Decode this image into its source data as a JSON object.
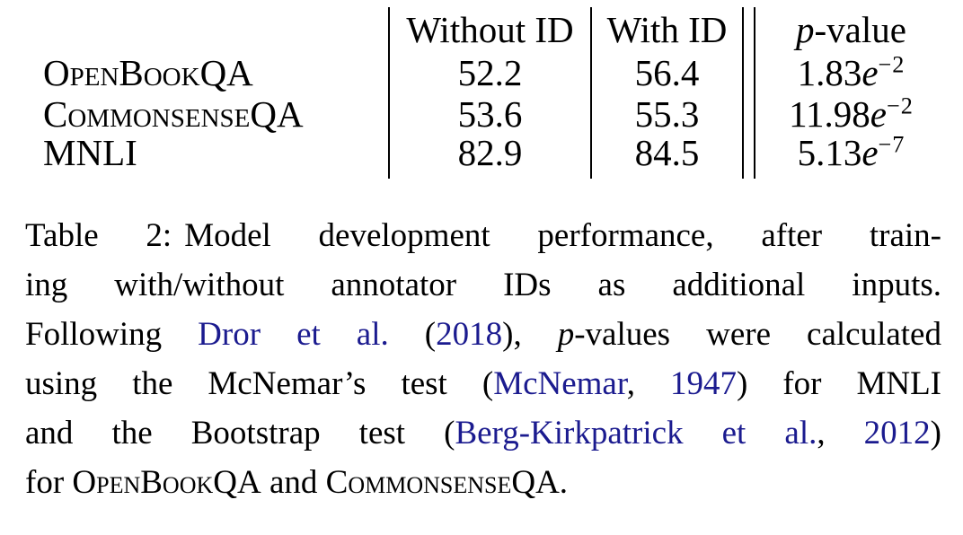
{
  "colors": {
    "background": "#ffffff",
    "text": "#000000",
    "citation_link": "#1B1B8F"
  },
  "table": {
    "columns": {
      "row_header": "",
      "without_id": "Without ID",
      "with_id": "With ID",
      "p_header_italic": "p",
      "p_header_rest": "-value"
    },
    "rows": [
      {
        "label": "OpenBookQA",
        "without_id": "52.2",
        "with_id": "56.4",
        "p_mantissa": "1.83",
        "p_e": "e",
        "p_exponent": "−2"
      },
      {
        "label": "CommonsenseQA",
        "without_id": "53.6",
        "with_id": "55.3",
        "p_mantissa": "11.98",
        "p_e": "e",
        "p_exponent": "−2"
      },
      {
        "label": "MNLI",
        "without_id": "82.9",
        "with_id": "84.5",
        "p_mantissa": "5.13",
        "p_e": "e",
        "p_exponent": "−7"
      }
    ]
  },
  "caption": {
    "lines": [
      [
        {
          "k": "label",
          "t": "Table 2:"
        },
        {
          "k": "text",
          "t": "Model development performance, after train-"
        }
      ],
      [
        {
          "k": "text",
          "t": "ing with/without annotator IDs as additional inputs."
        }
      ],
      [
        {
          "k": "text",
          "t": "Following "
        },
        {
          "k": "cite",
          "t": "Dror et al."
        },
        {
          "k": "text",
          "t": " ("
        },
        {
          "k": "cite",
          "t": "2018"
        },
        {
          "k": "text",
          "t": "), "
        },
        {
          "k": "italic",
          "t": "p"
        },
        {
          "k": "text",
          "t": "-values were calculated"
        }
      ],
      [
        {
          "k": "text",
          "t": "using the McNemar’s test ("
        },
        {
          "k": "cite",
          "t": "McNemar"
        },
        {
          "k": "text",
          "t": ", "
        },
        {
          "k": "cite",
          "t": "1947"
        },
        {
          "k": "text",
          "t": ") for MNLI"
        }
      ],
      [
        {
          "k": "text",
          "t": "and the Bootstrap test ("
        },
        {
          "k": "cite",
          "t": "Berg-Kirkpatrick et al."
        },
        {
          "k": "text",
          "t": ", "
        },
        {
          "k": "cite",
          "t": "2012"
        },
        {
          "k": "text",
          "t": ")"
        }
      ],
      [
        {
          "k": "text",
          "t": "for "
        },
        {
          "k": "smallcaps",
          "t": "OpenBookQA"
        },
        {
          "k": "text",
          "t": " and "
        },
        {
          "k": "smallcaps",
          "t": "CommonsenseQA"
        },
        {
          "k": "text",
          "t": "."
        }
      ]
    ]
  }
}
